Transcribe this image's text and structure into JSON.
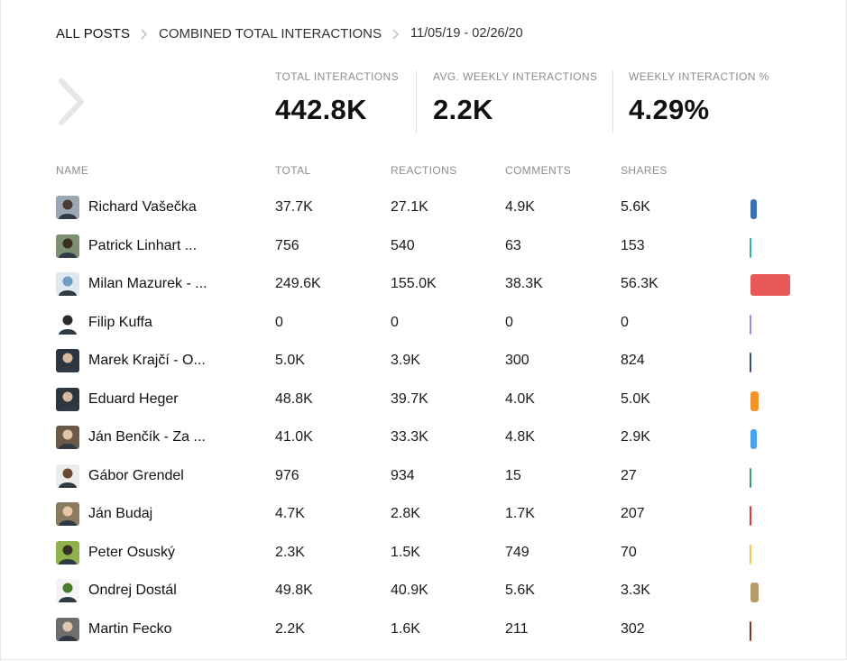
{
  "breadcrumb": {
    "root": "ALL POSTS",
    "metric": "COMBINED TOTAL INTERACTIONS",
    "date_range": "11/05/19 - 02/26/20"
  },
  "stats": {
    "total_label": "TOTAL INTERACTIONS",
    "total_value": "442.8K",
    "avg_label": "AVG. WEEKLY INTERACTIONS",
    "avg_value": "2.2K",
    "pct_label": "WEEKLY INTERACTION %",
    "pct_value": "4.29%"
  },
  "table": {
    "headers": [
      "NAME",
      "TOTAL",
      "REACTIONS",
      "COMMENTS",
      "SHARES"
    ],
    "rows": [
      {
        "name": "Richard Vašečka",
        "total": "37.7K",
        "reactions": "27.1K",
        "comments": "4.9K",
        "shares": "5.6K",
        "color": "#3c6fb0",
        "share": 0.085,
        "avatar_bg": "#9aa7b4",
        "avatar_fg": "#4a3a32"
      },
      {
        "name": "Patrick Linhart ...",
        "total": "756",
        "reactions": "540",
        "comments": "63",
        "shares": "153",
        "color": "#2bb5a3",
        "share": 0.0017,
        "avatar_bg": "#7d8f72",
        "avatar_fg": "#3b2e23"
      },
      {
        "name": "Milan Mazurek - ...",
        "total": "249.6K",
        "reactions": "155.0K",
        "comments": "38.3K",
        "shares": "56.3K",
        "color": "#e8585b",
        "share": 0.5637,
        "avatar_bg": "#dfe7ef",
        "avatar_fg": "#6a9bc9"
      },
      {
        "name": "Filip Kuffa",
        "total": "0",
        "reactions": "0",
        "comments": "0",
        "shares": "0",
        "color": "#a48ae0",
        "share": 0,
        "avatar_bg": "#ffffff",
        "avatar_fg": "#2b2b2b"
      },
      {
        "name": "Marek Krajčí - O...",
        "total": "5.0K",
        "reactions": "3.9K",
        "comments": "300",
        "shares": "824",
        "color": "#3b4f7a",
        "share": 0.0113,
        "avatar_bg": "#2c3640",
        "avatar_fg": "#d9b9a0"
      },
      {
        "name": "Eduard Heger",
        "total": "48.8K",
        "reactions": "39.7K",
        "comments": "4.0K",
        "shares": "5.0K",
        "color": "#f0952c",
        "share": 0.1102,
        "avatar_bg": "#2c3640",
        "avatar_fg": "#d9b9a0"
      },
      {
        "name": "Ján Benčík - Za ...",
        "total": "41.0K",
        "reactions": "33.3K",
        "comments": "4.8K",
        "shares": "2.9K",
        "color": "#4aa2e8",
        "share": 0.0926,
        "avatar_bg": "#6b5a4a",
        "avatar_fg": "#e0c3a8"
      },
      {
        "name": "Gábor Grendel",
        "total": "976",
        "reactions": "934",
        "comments": "15",
        "shares": "27",
        "color": "#3aa36c",
        "share": 0.0022,
        "avatar_bg": "#ececec",
        "avatar_fg": "#6b4a33"
      },
      {
        "name": "Ján Budaj",
        "total": "4.7K",
        "reactions": "2.8K",
        "comments": "1.7K",
        "shares": "207",
        "color": "#d83a3a",
        "share": 0.0106,
        "avatar_bg": "#8a7a60",
        "avatar_fg": "#e7c6a6"
      },
      {
        "name": "Peter Osuský",
        "total": "2.3K",
        "reactions": "1.5K",
        "comments": "749",
        "shares": "70",
        "color": "#f2c94c",
        "share": 0.0052,
        "avatar_bg": "#8fb24a",
        "avatar_fg": "#3a3028"
      },
      {
        "name": "Ondrej Dostál",
        "total": "49.8K",
        "reactions": "40.9K",
        "comments": "5.6K",
        "shares": "3.3K",
        "color": "#b59a6a",
        "share": 0.1125,
        "avatar_bg": "#f4f4f4",
        "avatar_fg": "#4a7a2a"
      },
      {
        "name": "Martin Fecko",
        "total": "2.2K",
        "reactions": "1.6K",
        "comments": "211",
        "shares": "302",
        "color": "#7a3a22",
        "share": 0.005,
        "avatar_bg": "#6d6d6d",
        "avatar_fg": "#e0c6b0"
      }
    ]
  }
}
